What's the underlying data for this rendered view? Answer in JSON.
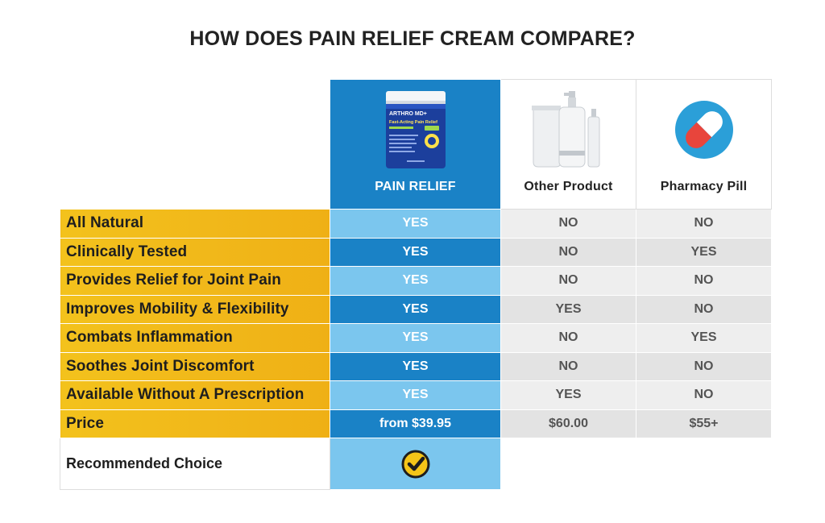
{
  "page": {
    "title": "HOW DOES PAIN RELIEF CREAM COMPARE?"
  },
  "columns": {
    "pain_relief": {
      "label": "PAIN RELIEF",
      "image_icon": "cream-jar-icon",
      "jar_text": {
        "brand": "ARTHRO MD+",
        "line": "Fast-Acting Pain Relief"
      }
    },
    "other_product": {
      "label": "Other Product",
      "image_icon": "cosmetic-bottles-icon"
    },
    "pharmacy_pill": {
      "label": "Pharmacy Pill",
      "image_icon": "pill-capsule-icon"
    }
  },
  "rows": [
    {
      "label": "All Natural",
      "pain_relief": "YES",
      "other_product": "NO",
      "pharmacy_pill": "NO"
    },
    {
      "label": "Clinically Tested",
      "pain_relief": "YES",
      "other_product": "NO",
      "pharmacy_pill": "YES"
    },
    {
      "label": "Provides Relief for Joint Pain",
      "pain_relief": "YES",
      "other_product": "NO",
      "pharmacy_pill": "NO"
    },
    {
      "label": "Improves Mobility & Flexibility",
      "pain_relief": "YES",
      "other_product": "YES",
      "pharmacy_pill": "NO"
    },
    {
      "label": "Combats Inflammation",
      "pain_relief": "YES",
      "other_product": "NO",
      "pharmacy_pill": "YES"
    },
    {
      "label": "Soothes Joint Discomfort",
      "pain_relief": "YES",
      "other_product": "NO",
      "pharmacy_pill": "NO"
    },
    {
      "label": "Available Without A Prescription",
      "pain_relief": "YES",
      "other_product": "YES",
      "pharmacy_pill": "NO"
    },
    {
      "label": "Price",
      "pain_relief": "from $39.95",
      "other_product": "$60.00",
      "pharmacy_pill": "$55+"
    }
  ],
  "recommended": {
    "label": "Recommended Choice",
    "icon": "checkmark-badge-icon"
  },
  "colors": {
    "brand_blue": "#1a82c6",
    "light_blue": "#7bc6ee",
    "label_yellow": "#f1b81a",
    "check_yellow": "#f5c518"
  }
}
